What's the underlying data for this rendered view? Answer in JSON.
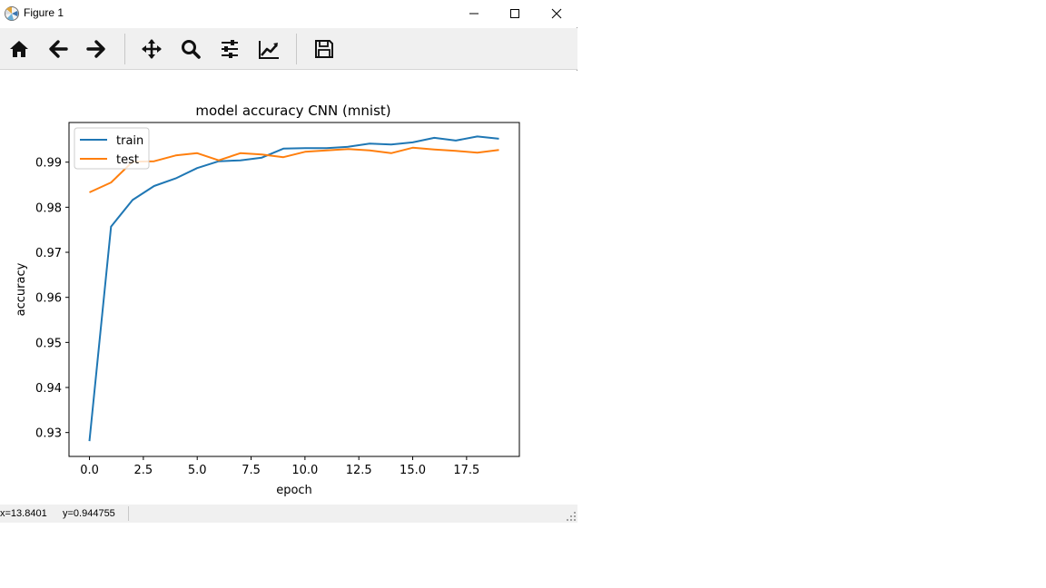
{
  "window": {
    "title": "Figure 1",
    "minimize_icon": "minimize-icon",
    "maximize_icon": "maximize-icon",
    "close_icon": "close-icon"
  },
  "toolbar": {
    "buttons": [
      {
        "name": "home-button",
        "icon": "home-icon"
      },
      {
        "name": "back-button",
        "icon": "arrow-left-icon"
      },
      {
        "name": "forward-button",
        "icon": "arrow-right-icon"
      },
      {
        "name": "pan-button",
        "icon": "move-icon"
      },
      {
        "name": "zoom-button",
        "icon": "magnifier-icon"
      },
      {
        "name": "subplots-button",
        "icon": "sliders-icon"
      },
      {
        "name": "edit-axes-button",
        "icon": "chart-line-icon"
      },
      {
        "name": "save-button",
        "icon": "floppy-disk-icon"
      }
    ]
  },
  "status": {
    "x": "x=13.8401",
    "y": "y=0.944755"
  },
  "chart_data": {
    "type": "line",
    "title": "model accuracy CNN (mnist)",
    "xlabel": "epoch",
    "ylabel": "accuracy",
    "xlim": [
      -0.95,
      19.95
    ],
    "ylim": [
      0.9247,
      0.9988
    ],
    "xticks": [
      0.0,
      2.5,
      5.0,
      7.5,
      10.0,
      12.5,
      15.0,
      17.5
    ],
    "xtick_labels": [
      "0.0",
      "2.5",
      "5.0",
      "7.5",
      "10.0",
      "12.5",
      "15.0",
      "17.5"
    ],
    "yticks": [
      0.93,
      0.94,
      0.95,
      0.96,
      0.97,
      0.98,
      0.99
    ],
    "ytick_labels": [
      "0.93",
      "0.94",
      "0.95",
      "0.96",
      "0.97",
      "0.98",
      "0.99"
    ],
    "grid": false,
    "legend_position": "upper-left",
    "x": [
      0,
      1,
      2,
      3,
      4,
      5,
      6,
      7,
      8,
      9,
      10,
      11,
      12,
      13,
      14,
      15,
      16,
      17,
      18,
      19
    ],
    "series": [
      {
        "name": "train",
        "color": "#1f77b4",
        "values": [
          0.9281,
          0.9757,
          0.9816,
          0.9847,
          0.9864,
          0.9887,
          0.9902,
          0.9904,
          0.991,
          0.993,
          0.9931,
          0.9931,
          0.9934,
          0.9941,
          0.9939,
          0.9944,
          0.9954,
          0.9948,
          0.9957,
          0.9952
        ]
      },
      {
        "name": "test",
        "color": "#ff7f0e",
        "values": [
          0.9833,
          0.9855,
          0.9901,
          0.9902,
          0.9915,
          0.992,
          0.9904,
          0.992,
          0.9917,
          0.9911,
          0.9923,
          0.9926,
          0.9929,
          0.9926,
          0.992,
          0.9932,
          0.9928,
          0.9925,
          0.9921,
          0.9927
        ]
      }
    ]
  }
}
